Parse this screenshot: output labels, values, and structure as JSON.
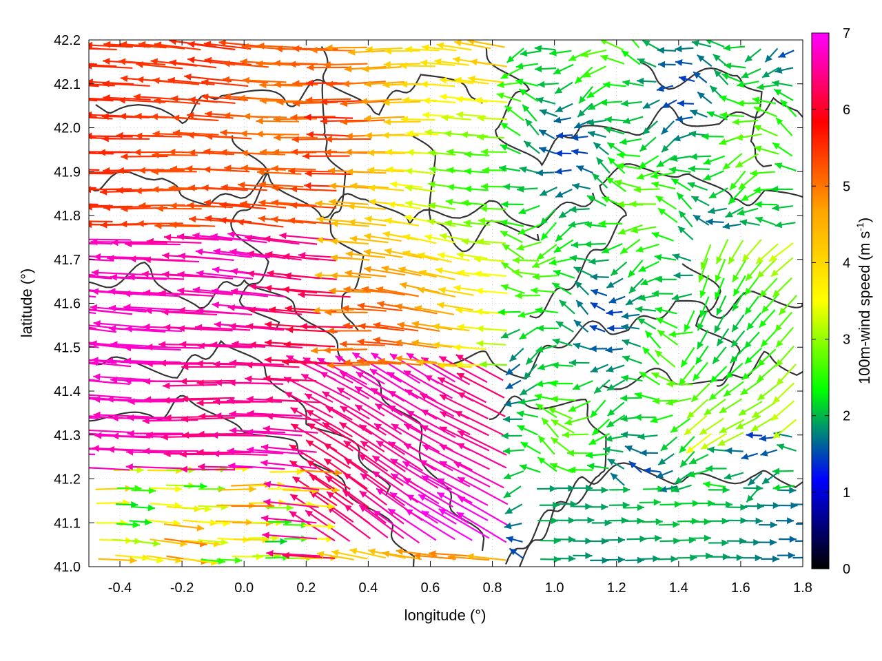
{
  "chart_data": {
    "type": "vector-field",
    "xlabel": "longitude (°)",
    "ylabel": "latitude (°)",
    "xlim": [
      -0.5,
      1.8
    ],
    "ylim": [
      41.0,
      42.2
    ],
    "x_ticks": [
      "-0.4",
      "-0.2",
      "0.0",
      "0.2",
      "0.4",
      "0.6",
      "0.8",
      "1.0",
      "1.2",
      "1.4",
      "1.6",
      "1.8"
    ],
    "x_tick_values": [
      -0.4,
      -0.2,
      0.0,
      0.2,
      0.4,
      0.6,
      0.8,
      1.0,
      1.2,
      1.4,
      1.6,
      1.8
    ],
    "y_ticks": [
      "41.0",
      "41.1",
      "41.2",
      "41.3",
      "41.4",
      "41.5",
      "41.6",
      "41.7",
      "41.8",
      "41.9",
      "42.0",
      "42.1",
      "42.2"
    ],
    "y_tick_values": [
      41.0,
      41.1,
      41.2,
      41.3,
      41.4,
      41.5,
      41.6,
      41.7,
      41.8,
      41.9,
      42.0,
      42.1,
      42.2
    ],
    "grid": true,
    "colorbar": {
      "label_main": "100m-wind speed (m s",
      "label_sup": "-1",
      "label_end": ")",
      "min": 0,
      "max": 7,
      "ticks": [
        "0",
        "1",
        "2",
        "3",
        "4",
        "5",
        "6",
        "7"
      ],
      "tick_values": [
        0,
        1,
        2,
        3,
        4,
        5,
        6,
        7
      ],
      "placement": "right",
      "colormap": [
        "#000000",
        "#0000ff",
        "#00ff00",
        "#ffff00",
        "#ffa500",
        "#ff0000",
        "#ff00ff"
      ]
    },
    "contour_color": "#333333",
    "description_of_field": "Wind vectors colored by 100m-wind speed over terrain contours; strong westward flow (magenta/red, ~6-7 m/s) in west, weak variable winds (blue/green, 0-2 m/s) in center-east, eastward green flow (~2 m/s) in southeast."
  }
}
